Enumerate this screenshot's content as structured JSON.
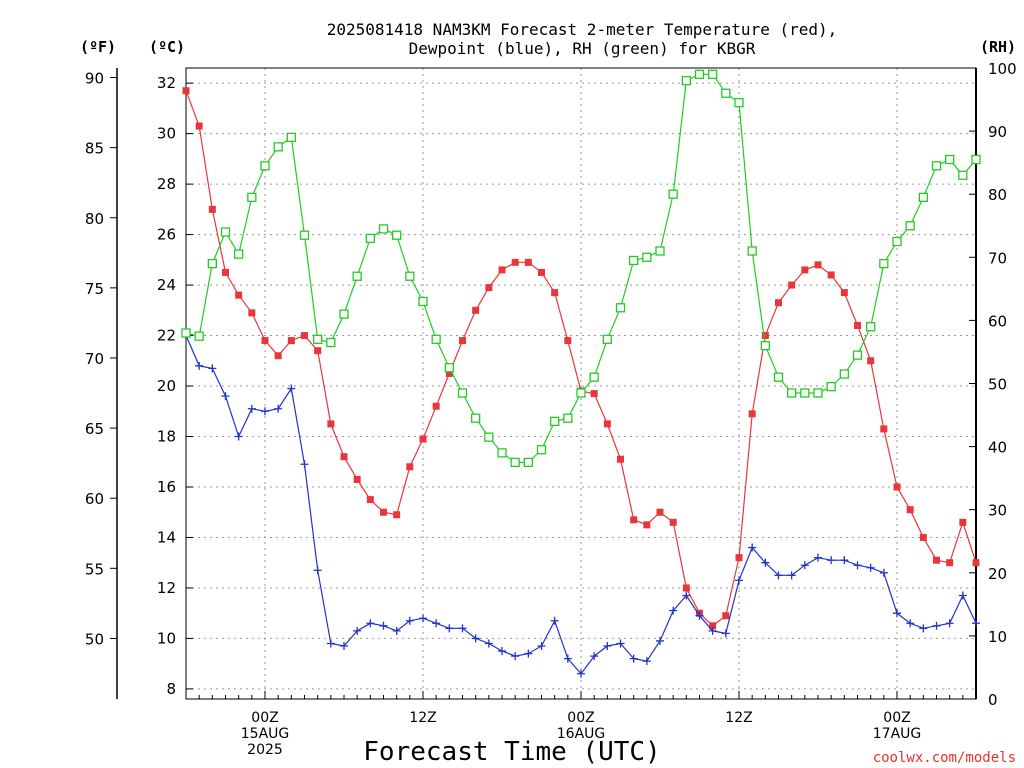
{
  "chart_data": {
    "type": "line",
    "title_line1": "2025081418 NAM3KM Forecast 2-meter Temperature (red),",
    "title_line2": "Dewpoint (blue), RH (green) for KBGR",
    "xlabel": "Forecast Time (UTC)",
    "credit": "coolwx.com/models",
    "units": {
      "fahrenheit": "(ºF)",
      "celsius": "(ºC)",
      "rh": "(RH)"
    },
    "x_range_hours": [
      0,
      60
    ],
    "x_ticks": [
      {
        "hour": 6,
        "lines": [
          "00Z",
          "15AUG",
          "2025"
        ]
      },
      {
        "hour": 18,
        "lines": [
          "12Z"
        ]
      },
      {
        "hour": 30,
        "lines": [
          "00Z",
          "16AUG"
        ]
      },
      {
        "hour": 42,
        "lines": [
          "12Z"
        ]
      },
      {
        "hour": 54,
        "lines": [
          "00Z",
          "17AUG"
        ]
      }
    ],
    "y_left_celsius": {
      "range": [
        7.6,
        32.6
      ],
      "ticks": [
        8,
        10,
        12,
        14,
        16,
        18,
        20,
        22,
        24,
        26,
        28,
        30,
        32
      ]
    },
    "y_left_fahrenheit": {
      "ticks": [
        50,
        55,
        60,
        65,
        70,
        75,
        80,
        85,
        90
      ]
    },
    "y_right_rh": {
      "range": [
        0,
        100
      ],
      "ticks": [
        0,
        10,
        20,
        30,
        40,
        50,
        60,
        70,
        80,
        90,
        100
      ]
    },
    "grid": true,
    "series": [
      {
        "name": "2-meter Temperature",
        "color": "#e8363a",
        "marker": "filled-square",
        "axis": "celsius",
        "values": [
          31.7,
          30.3,
          27.0,
          24.5,
          23.6,
          22.9,
          21.8,
          21.2,
          21.8,
          22.0,
          21.4,
          18.5,
          17.2,
          16.3,
          15.5,
          15.0,
          14.9,
          16.8,
          17.9,
          19.2,
          20.5,
          21.8,
          23.0,
          23.9,
          24.6,
          24.9,
          24.9,
          24.5,
          23.7,
          21.8,
          19.8,
          19.7,
          18.5,
          17.1,
          14.7,
          14.5,
          15.0,
          14.6,
          12.0,
          11.0,
          10.5,
          10.9,
          13.2,
          18.9,
          22.0,
          23.3,
          24.0,
          24.6,
          24.8,
          24.4,
          23.7,
          22.4,
          21.0,
          18.3,
          16.0,
          15.1,
          14.0,
          13.1,
          13.0,
          14.6,
          13.0
        ]
      },
      {
        "name": "Dewpoint",
        "color": "#2233cc",
        "marker": "plus",
        "axis": "celsius",
        "values": [
          22.0,
          20.8,
          20.7,
          19.6,
          18.0,
          19.1,
          19.0,
          19.1,
          19.9,
          16.9,
          12.7,
          9.8,
          9.7,
          10.3,
          10.6,
          10.5,
          10.3,
          10.7,
          10.8,
          10.6,
          10.4,
          10.4,
          10.0,
          9.8,
          9.5,
          9.3,
          9.4,
          9.7,
          10.7,
          9.2,
          8.6,
          9.3,
          9.7,
          9.8,
          9.2,
          9.1,
          9.9,
          11.1,
          11.7,
          10.9,
          10.3,
          10.2,
          12.3,
          13.6,
          13.0,
          12.5,
          12.5,
          12.9,
          13.2,
          13.1,
          13.1,
          12.9,
          12.8,
          12.6,
          11.0,
          10.6,
          10.4,
          10.5,
          10.6,
          11.7,
          10.6
        ]
      },
      {
        "name": "RH",
        "color": "#22cc22",
        "marker": "open-square",
        "axis": "rh",
        "values": [
          58,
          57.5,
          69,
          74,
          70.5,
          79.5,
          84.5,
          87.5,
          89,
          73.5,
          57,
          56.5,
          61,
          67,
          73,
          74.5,
          73.5,
          67,
          63,
          57,
          52.5,
          48.5,
          44.5,
          41.5,
          39,
          37.5,
          37.5,
          39.5,
          44,
          44.5,
          48.5,
          51,
          57,
          62,
          69.5,
          70,
          71,
          80,
          98,
          99,
          99,
          96,
          94.5,
          71,
          56,
          51,
          48.5,
          48.5,
          48.5,
          49.5,
          51.5,
          54.5,
          59,
          69,
          72.5,
          75,
          79.5,
          84.5,
          85.5,
          83,
          85.5
        ]
      }
    ]
  }
}
